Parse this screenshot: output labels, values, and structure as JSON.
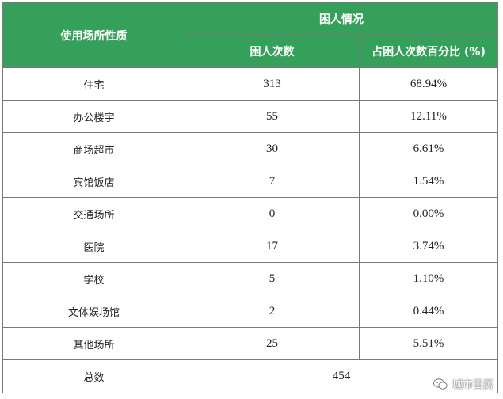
{
  "header": {
    "col1": "使用场所性质",
    "group": "困人情况",
    "col2": "困人次数",
    "col3": "占困人次数百分比 (%)"
  },
  "rows": [
    {
      "place": "住宅",
      "count": "313",
      "percent": "68.94%"
    },
    {
      "place": "办公楼宇",
      "count": "55",
      "percent": "12.11%"
    },
    {
      "place": "商场超市",
      "count": "30",
      "percent": "6.61%"
    },
    {
      "place": "宾馆饭店",
      "count": "7",
      "percent": "1.54%"
    },
    {
      "place": "交通场所",
      "count": "0",
      "percent": "0.00%"
    },
    {
      "place": "医院",
      "count": "17",
      "percent": "3.74%"
    },
    {
      "place": "学校",
      "count": "5",
      "percent": "1.10%"
    },
    {
      "place": "文体娱场馆",
      "count": "2",
      "percent": "0.44%"
    },
    {
      "place": "其他场所",
      "count": "25",
      "percent": "5.51%"
    }
  ],
  "total": {
    "label": "总数",
    "value": "454"
  },
  "watermark": {
    "text": "城市日历",
    "icon": "wechat-icon"
  },
  "colors": {
    "header_bg": "#34a05a",
    "header_text": "#ffffff"
  }
}
